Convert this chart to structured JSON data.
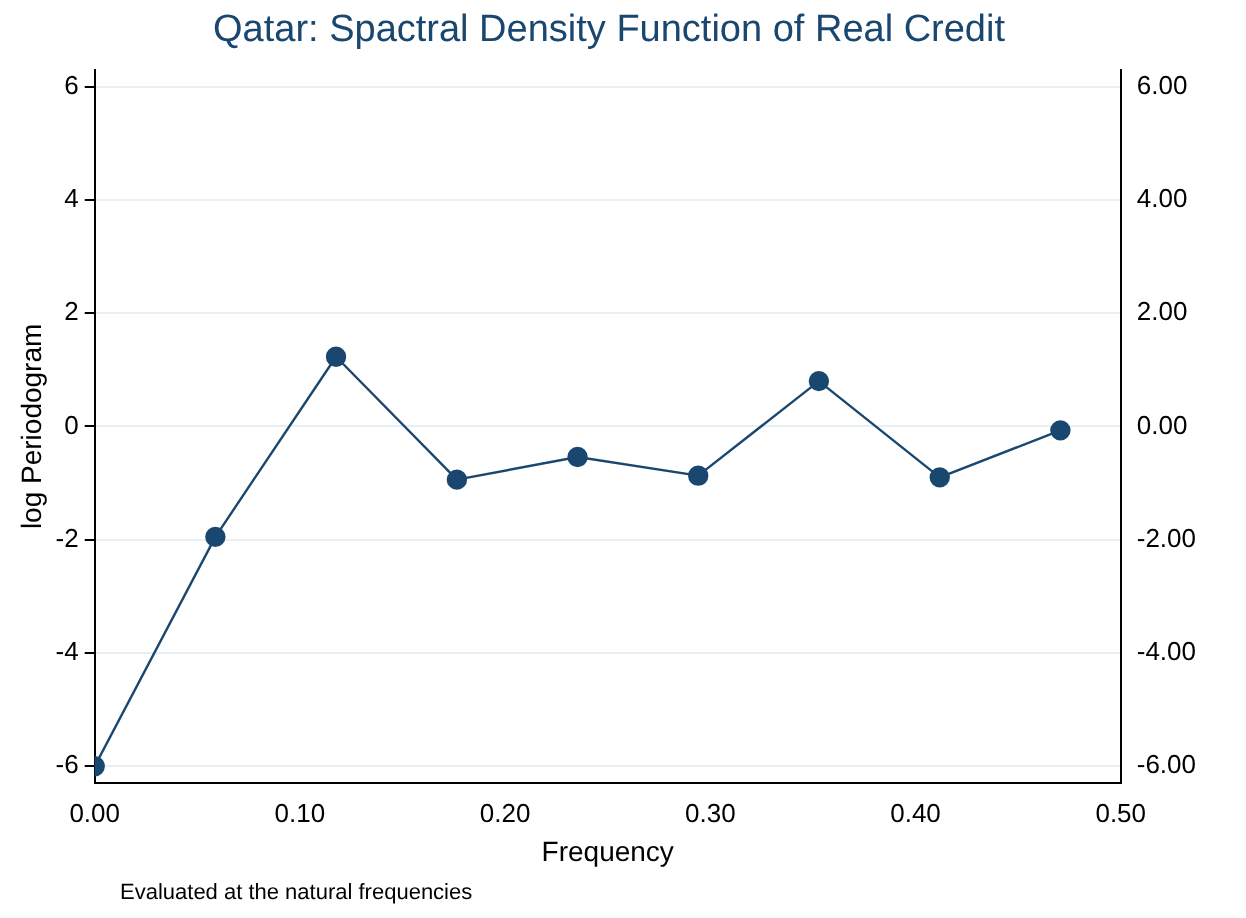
{
  "chart_data": {
    "type": "line",
    "title": "Qatar: Spactral Density Function of Real Credit",
    "xlabel": "Frequency",
    "ylabel": "log Periodogram",
    "x": [
      0,
      0.0588,
      0.1176,
      0.1765,
      0.2353,
      0.2941,
      0.3529,
      0.4118,
      0.4706
    ],
    "series": [
      {
        "color": "#1a476f",
        "values": [
          -6.0,
          -1.95,
          1.23,
          -0.94,
          -0.54,
          -0.87,
          0.8,
          -0.9,
          -0.07
        ]
      }
    ],
    "xlim": [
      0,
      0.5
    ],
    "xticks": [
      {
        "value": 0,
        "label": "0.00"
      },
      {
        "value": 0.1,
        "label": "0.10"
      },
      {
        "value": 0.2,
        "label": "0.20"
      },
      {
        "value": 0.3,
        "label": "0.30"
      },
      {
        "value": 0.4,
        "label": "0.40"
      },
      {
        "value": 0.5,
        "label": "0.50"
      }
    ],
    "ylim": [
      -6.3,
      6.3
    ],
    "yticks": [
      -6,
      -4,
      -2,
      0,
      2,
      4,
      6
    ],
    "y2lim": [
      -6.3,
      6.3
    ],
    "y2ticks": [
      {
        "value": -6,
        "label": "-6.00"
      },
      {
        "value": -4,
        "label": "-4.00"
      },
      {
        "value": -2,
        "label": "-2.00"
      },
      {
        "value": 0,
        "label": "0.00"
      },
      {
        "value": 2,
        "label": "2.00"
      },
      {
        "value": 4,
        "label": "4.00"
      },
      {
        "value": 6,
        "label": "6.00"
      }
    ],
    "grid": "y",
    "legend": false,
    "marker": "circle",
    "line_style": "solid",
    "annotations": [
      "Evaluated at the natural frequencies"
    ]
  }
}
